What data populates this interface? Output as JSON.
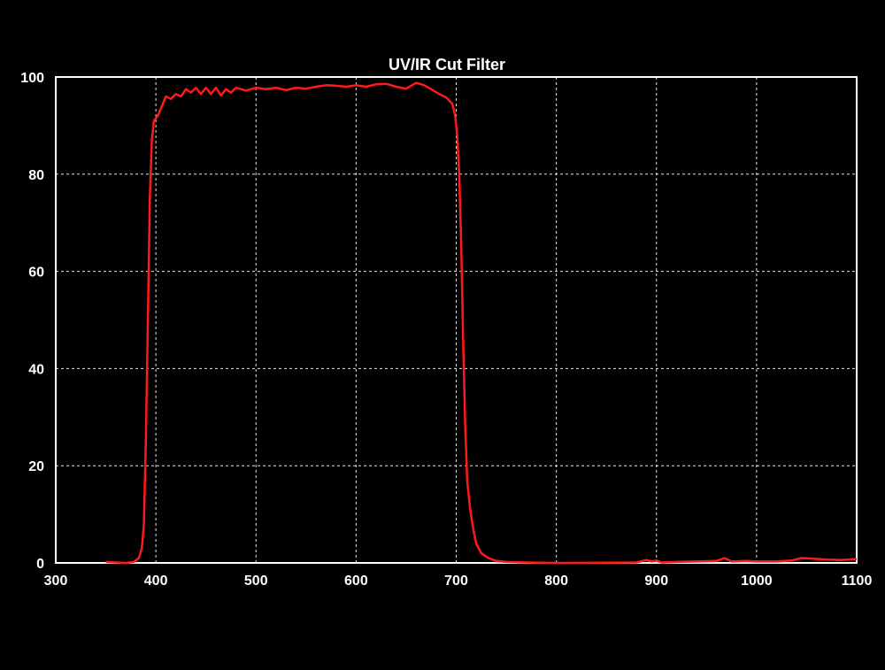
{
  "chart_data": {
    "type": "line",
    "title": "UV/IR Cut Filter",
    "xlabel": "",
    "ylabel": "",
    "xlim": [
      300,
      1100
    ],
    "ylim": [
      0,
      100
    ],
    "x_ticks": [
      300,
      400,
      500,
      600,
      700,
      800,
      900,
      1000,
      1100
    ],
    "y_ticks": [
      0,
      20,
      40,
      60,
      80,
      100
    ],
    "grid": true,
    "legend": "none",
    "colors": {
      "background": "#000000",
      "axes": "#ffffff",
      "grid": "#ffffff",
      "line": "#ff1a1a"
    },
    "series": [
      {
        "color": "#ff1a1a",
        "points": [
          [
            350,
            0.2
          ],
          [
            360,
            0.1
          ],
          [
            370,
            0.0
          ],
          [
            378,
            0.2
          ],
          [
            383,
            1.0
          ],
          [
            386,
            3.0
          ],
          [
            388,
            8.0
          ],
          [
            390,
            25.0
          ],
          [
            392,
            50.0
          ],
          [
            394,
            75.0
          ],
          [
            396,
            87.0
          ],
          [
            398,
            91.0
          ],
          [
            402,
            92.0
          ],
          [
            406,
            94.0
          ],
          [
            410,
            96.0
          ],
          [
            415,
            95.5
          ],
          [
            420,
            96.5
          ],
          [
            425,
            96.0
          ],
          [
            430,
            97.5
          ],
          [
            435,
            96.8
          ],
          [
            440,
            97.8
          ],
          [
            445,
            96.5
          ],
          [
            450,
            97.8
          ],
          [
            455,
            96.5
          ],
          [
            460,
            97.8
          ],
          [
            465,
            96.2
          ],
          [
            470,
            97.5
          ],
          [
            475,
            96.8
          ],
          [
            480,
            97.8
          ],
          [
            490,
            97.2
          ],
          [
            500,
            97.8
          ],
          [
            510,
            97.5
          ],
          [
            520,
            97.8
          ],
          [
            530,
            97.3
          ],
          [
            540,
            97.8
          ],
          [
            550,
            97.6
          ],
          [
            560,
            98.0
          ],
          [
            570,
            98.3
          ],
          [
            580,
            98.2
          ],
          [
            590,
            98.0
          ],
          [
            600,
            98.3
          ],
          [
            610,
            98.0
          ],
          [
            620,
            98.5
          ],
          [
            630,
            98.6
          ],
          [
            640,
            98.0
          ],
          [
            650,
            97.6
          ],
          [
            660,
            98.8
          ],
          [
            668,
            98.3
          ],
          [
            675,
            97.5
          ],
          [
            683,
            96.5
          ],
          [
            690,
            95.8
          ],
          [
            696,
            94.5
          ],
          [
            699,
            92.0
          ],
          [
            701,
            88.0
          ],
          [
            703,
            80.0
          ],
          [
            705,
            65.0
          ],
          [
            707,
            45.0
          ],
          [
            709,
            28.0
          ],
          [
            711,
            17.0
          ],
          [
            714,
            11.0
          ],
          [
            717,
            7.0
          ],
          [
            720,
            4.0
          ],
          [
            725,
            2.0
          ],
          [
            732,
            1.0
          ],
          [
            740,
            0.4
          ],
          [
            750,
            0.2
          ],
          [
            770,
            0.1
          ],
          [
            800,
            0.0
          ],
          [
            880,
            0.1
          ],
          [
            890,
            0.6
          ],
          [
            895,
            0.3
          ],
          [
            900,
            0.5
          ],
          [
            905,
            0.1
          ],
          [
            920,
            0.2
          ],
          [
            940,
            0.3
          ],
          [
            960,
            0.4
          ],
          [
            968,
            1.0
          ],
          [
            975,
            0.3
          ],
          [
            990,
            0.4
          ],
          [
            1000,
            0.3
          ],
          [
            1020,
            0.3
          ],
          [
            1035,
            0.5
          ],
          [
            1045,
            1.0
          ],
          [
            1055,
            0.9
          ],
          [
            1070,
            0.7
          ],
          [
            1085,
            0.6
          ],
          [
            1100,
            0.8
          ]
        ]
      }
    ]
  }
}
